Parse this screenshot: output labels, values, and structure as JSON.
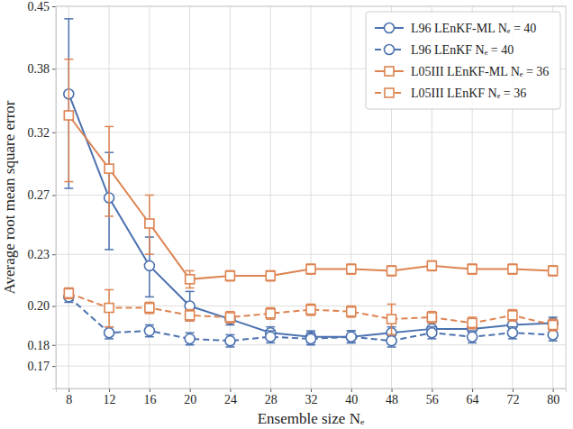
{
  "chart_data": {
    "type": "line",
    "x_label": "Ensemble size Nₑ",
    "y_label": "Average root mean square error",
    "categories": [
      8,
      12,
      16,
      20,
      24,
      28,
      32,
      40,
      48,
      56,
      64,
      72,
      80
    ],
    "ylim": [
      0.16,
      0.45
    ],
    "yticks": [
      0.17,
      0.18,
      {
        "value": 0.2,
        "label": "0.20"
      },
      0.23,
      0.27,
      0.32,
      0.38,
      0.45
    ],
    "log": "y",
    "grid": true,
    "legend": "upper right",
    "series": [
      {
        "name": "L96 LEnKF-ML Nₑ = 40",
        "color": "#4c72b0",
        "marker": "circle",
        "line_style": "solid",
        "values": [
          0.355,
          0.268,
          0.223,
          0.2,
          0.193,
          0.186,
          0.184,
          0.184,
          0.186,
          0.188,
          0.188,
          0.19,
          0.191
        ],
        "errors": [
          0.08,
          0.035,
          0.018,
          0.008,
          0.003,
          0.003,
          0.003,
          0.003,
          0.003,
          0.003,
          0.003,
          0.003,
          0.003
        ]
      },
      {
        "name": "L96 LEnKF Nₑ = 40",
        "color": "#4c72b0",
        "marker": "circle",
        "line_style": "dashed",
        "values": [
          0.205,
          0.186,
          0.187,
          0.183,
          0.182,
          0.184,
          0.183,
          0.184,
          0.182,
          0.186,
          0.184,
          0.186,
          0.185
        ],
        "errors": [
          0.003,
          0.003,
          0.003,
          0.003,
          0.003,
          0.003,
          0.003,
          0.003,
          0.003,
          0.003,
          0.003,
          0.003,
          0.003
        ]
      },
      {
        "name": "L05III LEnKF-ML Nₑ = 36",
        "color": "#dd8452",
        "marker": "square",
        "line_style": "solid",
        "values": [
          0.335,
          0.29,
          0.25,
          0.215,
          0.217,
          0.217,
          0.221,
          0.221,
          0.22,
          0.223,
          0.221,
          0.221,
          0.22
        ],
        "errors": [
          0.055,
          0.035,
          0.02,
          0.005,
          0.003,
          0.003,
          0.003,
          0.003,
          0.003,
          0.003,
          0.003,
          0.003,
          0.003
        ]
      },
      {
        "name": "L05III LEnKF Nₑ = 36",
        "color": "#dd8452",
        "marker": "square",
        "line_style": "dashed",
        "values": [
          0.207,
          0.199,
          0.199,
          0.195,
          0.194,
          0.196,
          0.198,
          0.197,
          0.193,
          0.194,
          0.191,
          0.195,
          0.19
        ],
        "errors": [
          0.003,
          0.01,
          0.003,
          0.003,
          0.003,
          0.003,
          0.003,
          0.003,
          0.008,
          0.003,
          0.003,
          0.003,
          0.003
        ]
      }
    ]
  }
}
